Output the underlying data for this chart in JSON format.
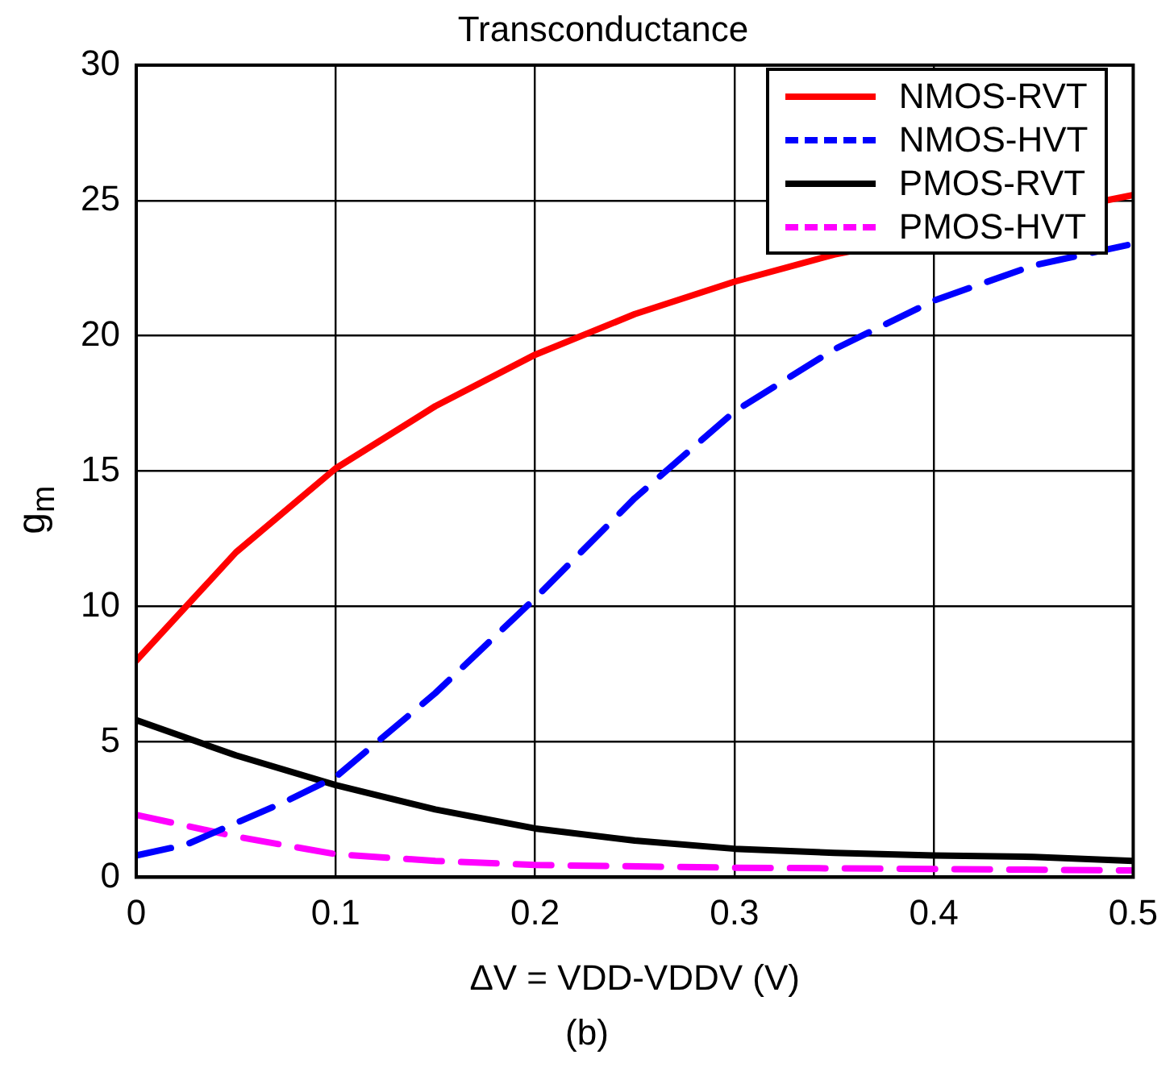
{
  "chart_data": {
    "type": "line",
    "title": "Transconductance",
    "xlabel": "ΔV = VDD-VDDV (V)",
    "ylabel": "g$_{m}$",
    "xlim": [
      0,
      0.5
    ],
    "xticks": [
      0,
      0.1,
      0.2,
      0.3,
      0.4,
      0.5
    ],
    "ylim": [
      0,
      30
    ],
    "yticks": [
      0,
      5,
      10,
      15,
      20,
      25,
      30
    ],
    "grid": true,
    "legend": "top right",
    "marker": "none",
    "annotations": [
      "(b)"
    ],
    "series": [
      {
        "name": "NMOS-RVT",
        "color": "#ff0000",
        "line_style": "solid",
        "x": [
          0,
          0.025,
          0.05,
          0.1,
          0.15,
          0.2,
          0.25,
          0.3,
          0.35,
          0.4,
          0.45,
          0.5
        ],
        "values": [
          8,
          10,
          12,
          15.1,
          17.4,
          19.3,
          20.8,
          22,
          23,
          null,
          null,
          25.2
        ]
      },
      {
        "name": "NMOS-HVT",
        "color": "#0000ff",
        "line_style": "dashed",
        "x": [
          0,
          0.025,
          0.05,
          0.075,
          0.1,
          0.15,
          0.2,
          0.25,
          0.3,
          0.35,
          0.4,
          0.45,
          0.5
        ],
        "values": [
          0.8,
          1.2,
          2,
          2.8,
          3.7,
          6.8,
          10.3,
          14,
          17.2,
          19.5,
          21.3,
          22.6,
          23.4
        ]
      },
      {
        "name": "PMOS-RVT",
        "color": "#000000",
        "line_style": "solid",
        "x": [
          0,
          0.05,
          0.1,
          0.15,
          0.2,
          0.25,
          0.3,
          0.35,
          0.4,
          0.45,
          0.5
        ],
        "values": [
          5.8,
          4.5,
          3.4,
          2.5,
          1.8,
          1.35,
          1.05,
          0.9,
          0.8,
          0.75,
          0.6
        ]
      },
      {
        "name": "PMOS-HVT",
        "color": "#ff00ff",
        "line_style": "dashed",
        "x": [
          0,
          0.05,
          0.1,
          0.15,
          0.2,
          0.3,
          0.4,
          0.5
        ],
        "values": [
          2.3,
          1.5,
          0.85,
          0.6,
          0.45,
          0.35,
          0.3,
          0.25
        ]
      }
    ]
  }
}
